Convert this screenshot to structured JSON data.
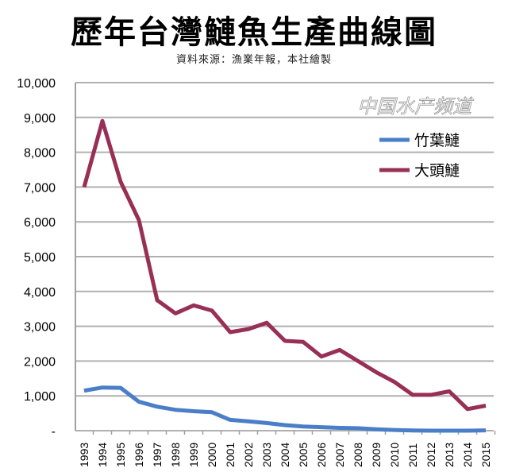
{
  "chart_data": {
    "type": "line",
    "title": "歷年台灣鰱魚生產曲線圖",
    "subtitle": "資料來源：漁業年報，本社繪製",
    "xlabel": "",
    "ylabel": "",
    "ylim": [
      0,
      10000
    ],
    "grid": true,
    "legend_position": "top-right",
    "y_ticks": [
      0,
      1000,
      2000,
      3000,
      4000,
      5000,
      6000,
      7000,
      8000,
      9000,
      10000
    ],
    "y_tick_labels": [
      "-",
      "1,000",
      "2,000",
      "3,000",
      "4,000",
      "5,000",
      "6,000",
      "7,000",
      "8,000",
      "9,000",
      "10,000"
    ],
    "categories": [
      "1993",
      "1994",
      "1995",
      "1996",
      "1997",
      "1998",
      "1999",
      "2000",
      "2001",
      "2002",
      "2003",
      "2004",
      "2005",
      "2006",
      "2007",
      "2008",
      "2009",
      "2010",
      "2011",
      "2012",
      "2013",
      "2014",
      "2015"
    ],
    "series": [
      {
        "name": "竹葉鰱",
        "color": "#4a7ec8",
        "values": [
          1150,
          1240,
          1230,
          830,
          690,
          600,
          560,
          530,
          310,
          270,
          220,
          160,
          120,
          100,
          80,
          70,
          40,
          20,
          5,
          0,
          0,
          0,
          10
        ]
      },
      {
        "name": "大頭鰱",
        "color": "#983055",
        "values": [
          7000,
          8900,
          7150,
          6050,
          3750,
          3370,
          3600,
          3450,
          2830,
          2920,
          3100,
          2580,
          2550,
          2130,
          2320,
          2000,
          1680,
          1400,
          1030,
          1030,
          1130,
          620,
          720
        ]
      }
    ]
  },
  "watermark": "中国水产频道"
}
